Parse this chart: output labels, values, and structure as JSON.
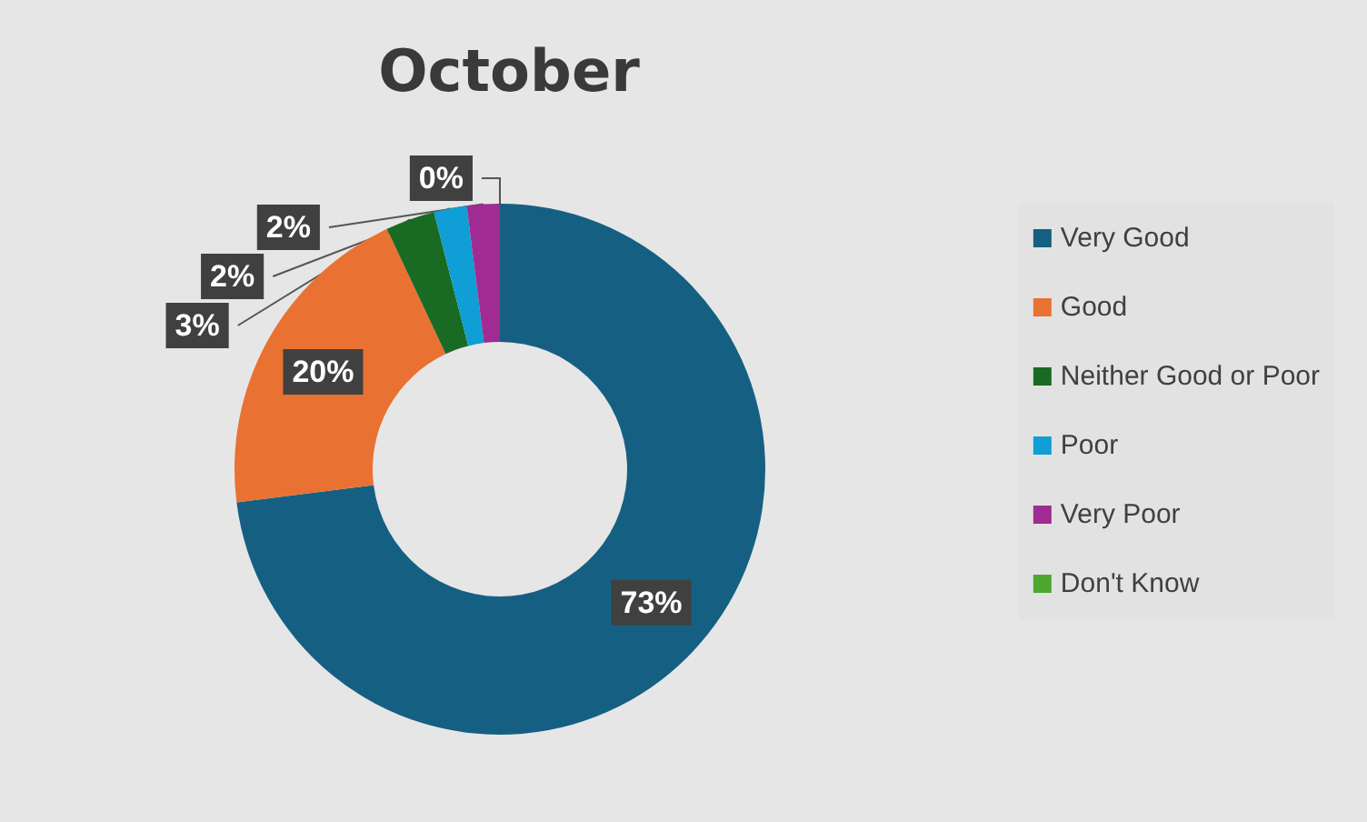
{
  "chart_data": {
    "type": "donut",
    "title": "October",
    "categories": [
      "Very Good",
      "Good",
      "Neither Good or Poor",
      "Poor",
      "Very Poor",
      "Don't Know"
    ],
    "values": [
      73,
      20,
      3,
      2,
      2,
      0
    ],
    "colors": [
      "#156082",
      "#e97132",
      "#196b24",
      "#0f9ed5",
      "#a02b93",
      "#4ea72e"
    ],
    "value_labels": [
      "73%",
      "20%",
      "3%",
      "2%",
      "2%",
      "0%"
    ],
    "legend": "right"
  }
}
